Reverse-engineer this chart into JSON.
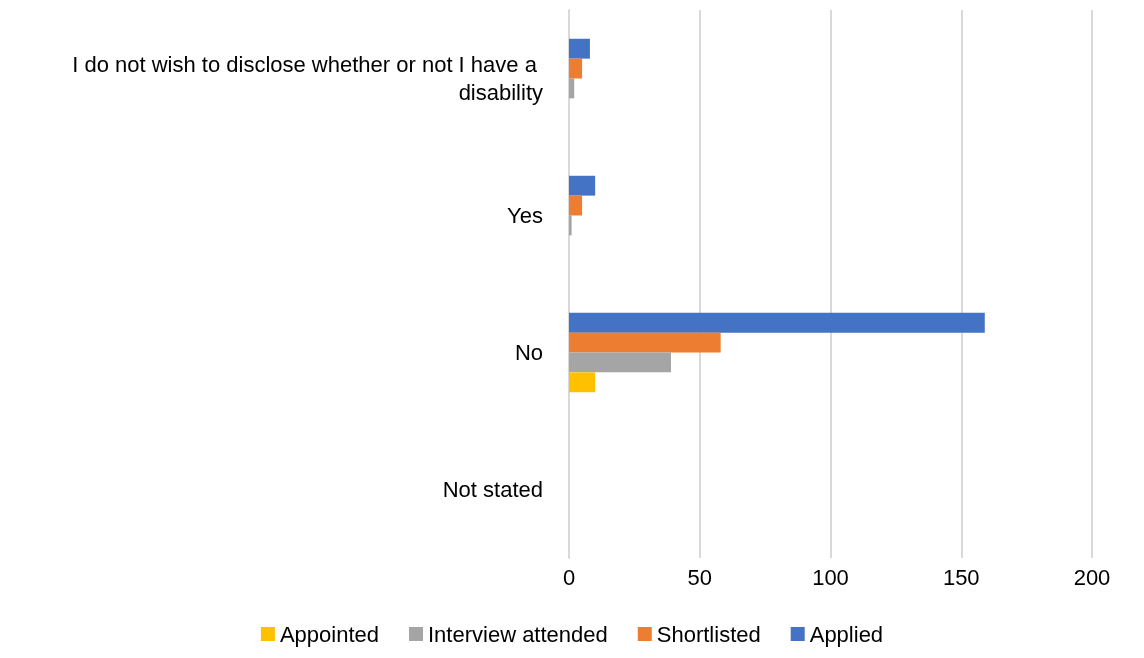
{
  "chart_data": {
    "type": "bar",
    "orientation": "horizontal",
    "categories": [
      "I do not wish to disclose whether or not I have a disability",
      "Yes",
      "No",
      "Not stated"
    ],
    "series": [
      {
        "name": "Appointed",
        "color": "#ffc000",
        "values": [
          0,
          0,
          10,
          0
        ]
      },
      {
        "name": "Interview attended",
        "color": "#a5a5a5",
        "values": [
          2,
          1,
          39,
          0
        ]
      },
      {
        "name": "Shortlisted",
        "color": "#ed7d31",
        "values": [
          5,
          5,
          58,
          0
        ]
      },
      {
        "name": "Applied",
        "color": "#4472c4",
        "values": [
          8,
          10,
          159,
          0
        ]
      }
    ],
    "xlim": [
      0,
      200
    ],
    "xticks": [
      0,
      50,
      100,
      150,
      200
    ],
    "grid": "x",
    "legend": "bottom"
  }
}
